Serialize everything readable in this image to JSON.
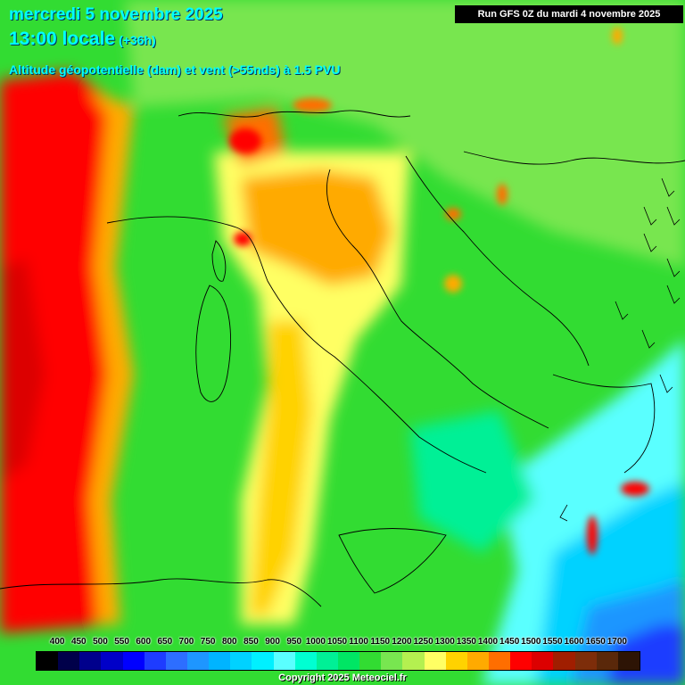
{
  "header": {
    "date": "mercredi 5 novembre 2025",
    "time": "13:00 locale",
    "offset": "(+36h)",
    "parameter": "Altitude géopotentielle (dam) et vent (>55nds) à 1.5 PVU",
    "run": "Run GFS 0Z du mardi 4 novembre 2025"
  },
  "legend": {
    "labels": [
      "400",
      "450",
      "500",
      "550",
      "600",
      "650",
      "700",
      "750",
      "800",
      "850",
      "900",
      "950",
      "1000",
      "1050",
      "1100",
      "1150",
      "1200",
      "1250",
      "1300",
      "1350",
      "1400",
      "1450",
      "1500",
      "1550",
      "1600",
      "1650",
      "1700"
    ],
    "colors": [
      "#000000",
      "#00004a",
      "#00008c",
      "#0000c8",
      "#0000ff",
      "#1e3cff",
      "#2d6eff",
      "#1e96ff",
      "#00b4ff",
      "#00d2ff",
      "#00f0ff",
      "#5affff",
      "#00ffd2",
      "#00f096",
      "#00e664",
      "#32dc32",
      "#78e650",
      "#b4f050",
      "#ffff64",
      "#ffd200",
      "#ffaa00",
      "#ff6e00",
      "#ff0000",
      "#dc0000",
      "#a01e00",
      "#7d2d0a",
      "#5a280a",
      "#2d1405"
    ]
  },
  "copyright": "Copyright 2025 Meteociel.fr"
}
